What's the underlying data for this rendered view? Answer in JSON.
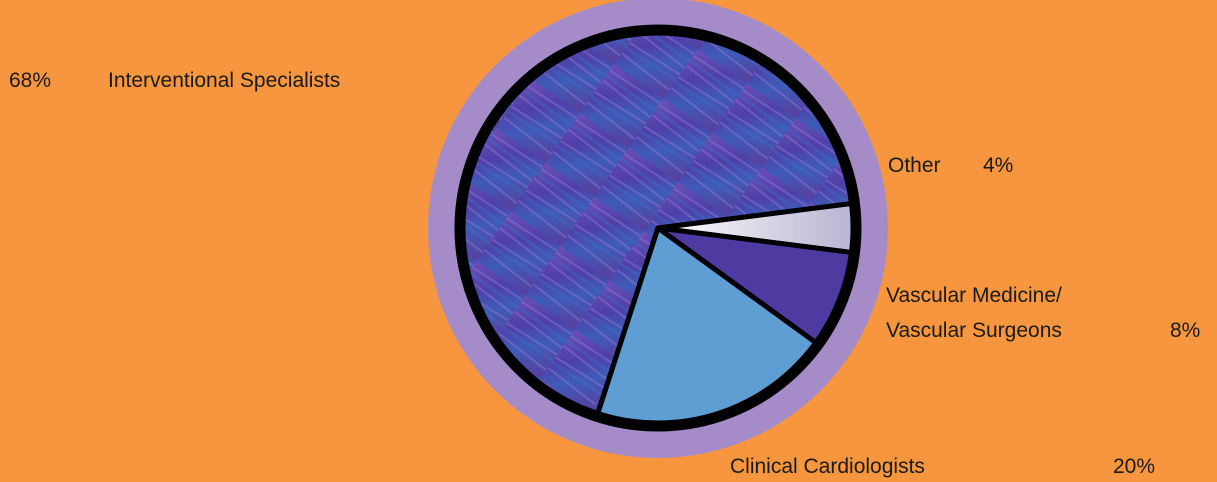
{
  "chart_data": {
    "type": "pie",
    "title": "",
    "slices": [
      {
        "name": "Interventional Specialists",
        "value": 68,
        "pct_label": "68%",
        "color": "#5B3FA6"
      },
      {
        "name": "Other",
        "value": 4,
        "pct_label": "4%",
        "color": "#E6E6F0"
      },
      {
        "name": "Vascular Medicine/ Vascular Surgeons",
        "value": 8,
        "pct_label": "8%",
        "color": "#4E3AA0"
      },
      {
        "name": "Clinical Cardiologists",
        "value": 20,
        "pct_label": "20%",
        "color": "#5E9ED2"
      }
    ],
    "labels": {
      "interventional": {
        "pct": "68%",
        "name": "Interventional Specialists"
      },
      "other": {
        "name": "Other",
        "pct": "4%"
      },
      "vascular": {
        "line1": "Vascular Medicine/",
        "line2": "Vascular Surgeons",
        "pct": "8%"
      },
      "clinical": {
        "name": "Clinical Cardiologists",
        "pct": "20%"
      }
    }
  },
  "colors": {
    "background": "#F7963E",
    "outer_ring": "#A58CC8",
    "border": "#000000"
  }
}
